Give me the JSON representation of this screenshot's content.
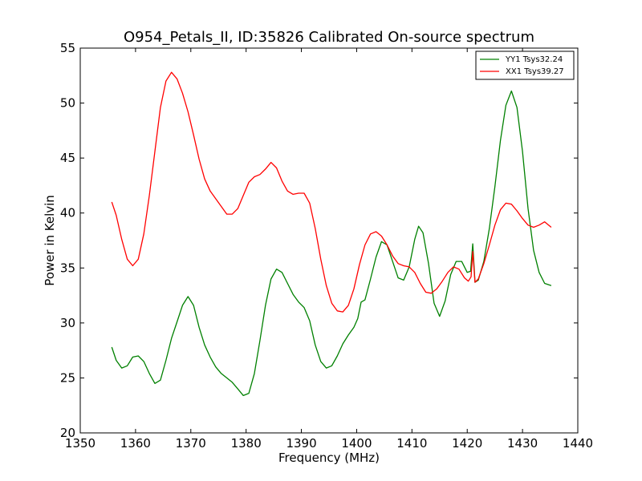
{
  "chart_data": {
    "type": "line",
    "title": "O954_Petals_II, ID:35826 Calibrated On-source spectrum",
    "xlabel": "Frequency (MHz)",
    "ylabel": "Power in Kelvin",
    "xlim": [
      1350,
      1440
    ],
    "ylim": [
      20,
      55
    ],
    "xticks": [
      1350,
      1360,
      1370,
      1380,
      1390,
      1400,
      1410,
      1420,
      1430,
      1440
    ],
    "yticks": [
      20,
      25,
      30,
      35,
      40,
      45,
      50,
      55
    ],
    "grid": false,
    "legend_position": "top-right",
    "series": [
      {
        "name": "YY1 Tsys32.24",
        "color": "#008000",
        "points": [
          [
            1355.7,
            27.8
          ],
          [
            1356.5,
            26.6
          ],
          [
            1357.5,
            25.9
          ],
          [
            1358.5,
            26.1
          ],
          [
            1359.5,
            26.9
          ],
          [
            1360.5,
            27.0
          ],
          [
            1361.5,
            26.5
          ],
          [
            1362.5,
            25.4
          ],
          [
            1363.5,
            24.5
          ],
          [
            1364.5,
            24.8
          ],
          [
            1365.5,
            26.6
          ],
          [
            1366.5,
            28.6
          ],
          [
            1367.5,
            30.1
          ],
          [
            1368.5,
            31.6
          ],
          [
            1369.5,
            32.4
          ],
          [
            1370.5,
            31.6
          ],
          [
            1371.5,
            29.6
          ],
          [
            1372.5,
            28.0
          ],
          [
            1373.5,
            26.9
          ],
          [
            1374.5,
            26.0
          ],
          [
            1375.5,
            25.4
          ],
          [
            1376.5,
            25.0
          ],
          [
            1377.5,
            24.6
          ],
          [
            1378.5,
            24.0
          ],
          [
            1379.5,
            23.4
          ],
          [
            1380.5,
            23.6
          ],
          [
            1381.5,
            25.4
          ],
          [
            1382.5,
            28.4
          ],
          [
            1383.5,
            31.6
          ],
          [
            1384.5,
            34.0
          ],
          [
            1385.5,
            34.9
          ],
          [
            1386.5,
            34.6
          ],
          [
            1387.5,
            33.6
          ],
          [
            1388.5,
            32.6
          ],
          [
            1389.5,
            31.9
          ],
          [
            1390.5,
            31.4
          ],
          [
            1391.5,
            30.2
          ],
          [
            1392.5,
            28.0
          ],
          [
            1393.5,
            26.5
          ],
          [
            1394.5,
            25.9
          ],
          [
            1395.5,
            26.1
          ],
          [
            1396.5,
            27.0
          ],
          [
            1397.5,
            28.1
          ],
          [
            1398.5,
            28.9
          ],
          [
            1399.5,
            29.6
          ],
          [
            1400.2,
            30.4
          ],
          [
            1400.8,
            31.9
          ],
          [
            1401.5,
            32.1
          ],
          [
            1402.5,
            34.0
          ],
          [
            1403.5,
            36.0
          ],
          [
            1404.5,
            37.4
          ],
          [
            1405.5,
            37.1
          ],
          [
            1406.5,
            35.6
          ],
          [
            1407.5,
            34.1
          ],
          [
            1408.5,
            33.9
          ],
          [
            1409.5,
            35.1
          ],
          [
            1410.5,
            37.6
          ],
          [
            1411.2,
            38.8
          ],
          [
            1412.0,
            38.2
          ],
          [
            1413.0,
            35.4
          ],
          [
            1414.0,
            31.8
          ],
          [
            1415.0,
            30.6
          ],
          [
            1416.0,
            32.0
          ],
          [
            1417.0,
            34.4
          ],
          [
            1418.0,
            35.6
          ],
          [
            1419.0,
            35.6
          ],
          [
            1420.0,
            34.6
          ],
          [
            1420.6,
            34.7
          ],
          [
            1421.0,
            37.2
          ],
          [
            1421.4,
            33.7
          ],
          [
            1422.0,
            33.9
          ],
          [
            1423.0,
            35.6
          ],
          [
            1424.0,
            38.6
          ],
          [
            1425.0,
            42.4
          ],
          [
            1426.0,
            46.6
          ],
          [
            1427.0,
            49.8
          ],
          [
            1428.0,
            51.1
          ],
          [
            1429.0,
            49.6
          ],
          [
            1430.0,
            45.6
          ],
          [
            1431.0,
            40.4
          ],
          [
            1432.0,
            36.6
          ],
          [
            1433.0,
            34.6
          ],
          [
            1434.0,
            33.6
          ],
          [
            1435.2,
            33.4
          ]
        ]
      },
      {
        "name": "XX1 Tsys39.27",
        "color": "#ff0000",
        "points": [
          [
            1355.7,
            41.0
          ],
          [
            1356.5,
            39.8
          ],
          [
            1357.5,
            37.6
          ],
          [
            1358.5,
            35.8
          ],
          [
            1359.5,
            35.2
          ],
          [
            1360.5,
            35.8
          ],
          [
            1361.5,
            38.1
          ],
          [
            1362.5,
            41.6
          ],
          [
            1363.5,
            45.6
          ],
          [
            1364.5,
            49.6
          ],
          [
            1365.5,
            52.0
          ],
          [
            1366.5,
            52.8
          ],
          [
            1367.5,
            52.2
          ],
          [
            1368.5,
            50.9
          ],
          [
            1369.5,
            49.2
          ],
          [
            1370.5,
            47.1
          ],
          [
            1371.5,
            44.9
          ],
          [
            1372.5,
            43.1
          ],
          [
            1373.5,
            42.0
          ],
          [
            1374.5,
            41.3
          ],
          [
            1375.5,
            40.6
          ],
          [
            1376.5,
            39.9
          ],
          [
            1377.5,
            39.9
          ],
          [
            1378.5,
            40.4
          ],
          [
            1379.5,
            41.6
          ],
          [
            1380.5,
            42.8
          ],
          [
            1381.5,
            43.3
          ],
          [
            1382.5,
            43.5
          ],
          [
            1383.5,
            44.0
          ],
          [
            1384.5,
            44.6
          ],
          [
            1385.5,
            44.1
          ],
          [
            1386.5,
            42.9
          ],
          [
            1387.5,
            42.0
          ],
          [
            1388.5,
            41.7
          ],
          [
            1389.5,
            41.8
          ],
          [
            1390.5,
            41.8
          ],
          [
            1391.5,
            40.9
          ],
          [
            1392.5,
            38.6
          ],
          [
            1393.5,
            35.8
          ],
          [
            1394.5,
            33.4
          ],
          [
            1395.5,
            31.8
          ],
          [
            1396.5,
            31.1
          ],
          [
            1397.5,
            31.0
          ],
          [
            1398.5,
            31.6
          ],
          [
            1399.5,
            33.1
          ],
          [
            1400.5,
            35.3
          ],
          [
            1401.5,
            37.1
          ],
          [
            1402.5,
            38.1
          ],
          [
            1403.5,
            38.3
          ],
          [
            1404.5,
            37.9
          ],
          [
            1405.5,
            37.1
          ],
          [
            1406.5,
            36.1
          ],
          [
            1407.5,
            35.4
          ],
          [
            1408.5,
            35.2
          ],
          [
            1409.5,
            35.1
          ],
          [
            1410.5,
            34.6
          ],
          [
            1411.5,
            33.6
          ],
          [
            1412.5,
            32.8
          ],
          [
            1413.5,
            32.7
          ],
          [
            1414.5,
            33.1
          ],
          [
            1415.5,
            33.8
          ],
          [
            1416.5,
            34.6
          ],
          [
            1417.5,
            35.1
          ],
          [
            1418.5,
            34.9
          ],
          [
            1419.5,
            34.1
          ],
          [
            1420.2,
            33.8
          ],
          [
            1420.7,
            34.2
          ],
          [
            1421.0,
            36.5
          ],
          [
            1421.4,
            33.7
          ],
          [
            1422.0,
            34.0
          ],
          [
            1423.0,
            35.4
          ],
          [
            1424.0,
            37.1
          ],
          [
            1425.0,
            38.9
          ],
          [
            1426.0,
            40.3
          ],
          [
            1427.0,
            40.9
          ],
          [
            1428.0,
            40.8
          ],
          [
            1429.0,
            40.2
          ],
          [
            1430.0,
            39.5
          ],
          [
            1431.0,
            38.9
          ],
          [
            1432.0,
            38.7
          ],
          [
            1433.0,
            38.9
          ],
          [
            1434.0,
            39.2
          ],
          [
            1435.2,
            38.7
          ]
        ]
      }
    ]
  }
}
